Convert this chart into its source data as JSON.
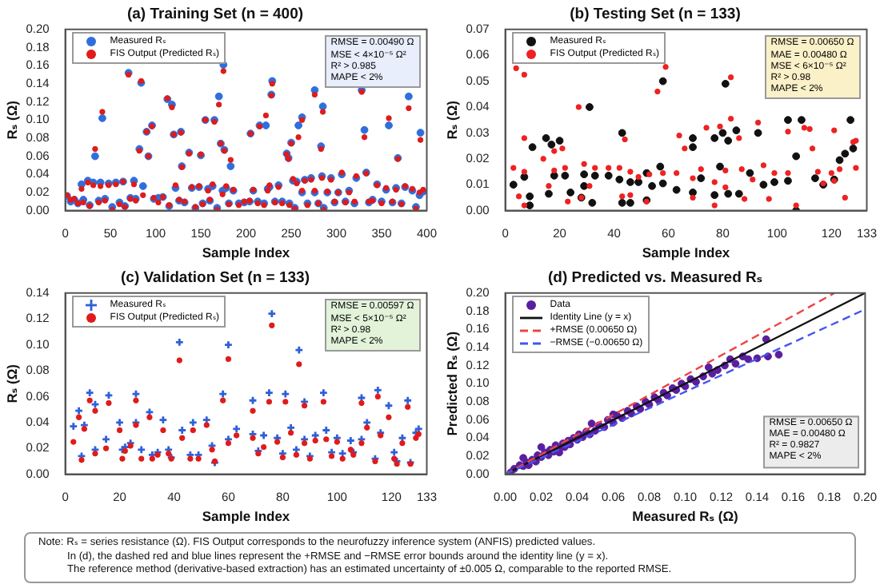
{
  "chart_data": [
    {
      "type": "scatter",
      "title": "(a) Training Set (n = 400)",
      "xlabel": "Sample Index",
      "ylabel": "Rₛ (Ω)",
      "legend": "top left",
      "xlim": [
        0,
        400
      ],
      "xticks": [
        0,
        50,
        100,
        150,
        200,
        250,
        300,
        350,
        400
      ],
      "ylim": [
        0,
        0.2
      ],
      "yticks": [
        {
          "value": 0,
          "label": "0.00"
        },
        {
          "value": 0.02,
          "label": "0.02"
        },
        {
          "value": 0.04,
          "label": "0.04"
        },
        {
          "value": 0.06,
          "label": "0.06"
        },
        {
          "value": 0.08,
          "label": "0.08"
        },
        {
          "value": 0.1,
          "label": "0.10"
        },
        {
          "value": 0.12,
          "label": "0.12"
        },
        {
          "value": 0.14,
          "label": "0.14"
        },
        {
          "value": 0.16,
          "label": "0.16"
        },
        {
          "value": 0.18,
          "label": "0.18"
        },
        {
          "value": 0.2,
          "label": "0.20"
        }
      ],
      "annotations": [
        "RMSE = 0.00490 Ω",
        "MSE < 4×10⁻⁵ Ω²",
        "R² > 0.985",
        "MAPE < 2%"
      ],
      "x": [
        2,
        6,
        10,
        14,
        18,
        20,
        25,
        27,
        31,
        37,
        39,
        44,
        48,
        52,
        56,
        60,
        64,
        66,
        72,
        76,
        78,
        86,
        98,
        103,
        108,
        115,
        122,
        126,
        132,
        140,
        144,
        148,
        152,
        158,
        160,
        163,
        168,
        174,
        178,
        181,
        186,
        192,
        198,
        204,
        208,
        213,
        220,
        224,
        226,
        232,
        236,
        240,
        248,
        252,
        254,
        256,
        262,
        265,
        268,
        272,
        276,
        280,
        284,
        286,
        290,
        294,
        298,
        302,
        306,
        310,
        314,
        320,
        336,
        340,
        345,
        350,
        355,
        362,
        366,
        372,
        376,
        384,
        388,
        392,
        396,
        33,
        41,
        70,
        82,
        84,
        90,
        92,
        96,
        113,
        118,
        120,
        128,
        129,
        137,
        150,
        155,
        165,
        170,
        172,
        175,
        176,
        183,
        205,
        215,
        222,
        228,
        229,
        245,
        247,
        250,
        258,
        262,
        276,
        285,
        283,
        322,
        328,
        331,
        333,
        358,
        368,
        380,
        393
      ],
      "series": [
        {
          "name": "Measured Rₛ",
          "color": "#2f6fdc",
          "marker": "circle",
          "values": [
            0.016,
            0.01,
            0.012,
            0.008,
            0.029,
            0.012,
            0.033,
            0.006,
            0.031,
            0.011,
            0.031,
            0.013,
            0.03,
            0.004,
            0.031,
            0.009,
            0.032,
            0.005,
            0.014,
            0.033,
            0.013,
            0.027,
            0.013,
            0.014,
            0.015,
            0.005,
            0.025,
            0.011,
            0.009,
            0.025,
            0.003,
            0.026,
            0.008,
            0.024,
            0.011,
            0.027,
            0.003,
            0.022,
            0.025,
            0.008,
            0.022,
            0.008,
            0.009,
            0.01,
            0.022,
            0.01,
            0.008,
            0.024,
            0.026,
            0.01,
            0.028,
            0.01,
            0.008,
            0.033,
            0.003,
            0.032,
            0.02,
            0.034,
            0.008,
            0.036,
            0.02,
            0.008,
            0.038,
            0.003,
            0.02,
            0.036,
            0.009,
            0.02,
            0.04,
            0.01,
            0.022,
            0.008,
            0.009,
            0.012,
            0.029,
            0.01,
            0.023,
            0.009,
            0.025,
            0.008,
            0.026,
            0.022,
            0.004,
            0.017,
            0.021,
            0.06,
            0.102,
            0.152,
            0.068,
            0.141,
            0.087,
            0.06,
            0.094,
            0.123,
            0.117,
            0.084,
            0.087,
            0.049,
            0.064,
            0.061,
            0.1,
            0.1,
            0.126,
            0.074,
            0.161,
            0.067,
            0.049,
            0.085,
            0.094,
            0.094,
            0.128,
            0.143,
            0.063,
            0.058,
            0.075,
            0.094,
            0.103,
            0.133,
            0.115,
            0.071,
            0.036,
            0.133,
            0.089,
            0.042,
            0.094,
            0.058,
            0.126,
            0.086
          ]
        },
        {
          "name": "FIS Output (Predicted Rₛ)",
          "color": "#e01b1b",
          "marker": "circle",
          "values": [
            0.017,
            0.012,
            0.013,
            0.008,
            0.024,
            0.009,
            0.031,
            0.005,
            0.028,
            0.009,
            0.027,
            0.011,
            0.028,
            0.001,
            0.029,
            0.007,
            0.032,
            0.004,
            0.013,
            0.029,
            0.011,
            0.017,
            0.014,
            0.009,
            0.015,
            0.006,
            0.028,
            0.012,
            0.01,
            0.026,
            0.004,
            0.027,
            0.007,
            0.022,
            0.012,
            0.029,
            0.001,
            0.018,
            0.027,
            0.007,
            0.023,
            0.006,
            0.01,
            0.011,
            0.023,
            0.008,
            0.006,
            0.022,
            0.028,
            0.009,
            0.026,
            0.008,
            0.006,
            0.035,
            0.002,
            0.03,
            0.022,
            0.033,
            0.006,
            0.034,
            0.022,
            0.008,
            0.036,
            0.001,
            0.021,
            0.034,
            0.01,
            0.02,
            0.042,
            0.009,
            0.02,
            0.01,
            0.01,
            0.011,
            0.028,
            0.008,
            0.025,
            0.01,
            0.023,
            0.007,
            0.027,
            0.024,
            0.002,
            0.02,
            0.023,
            0.068,
            0.109,
            0.15,
            0.066,
            0.143,
            0.087,
            0.06,
            0.093,
            0.124,
            0.114,
            0.084,
            0.086,
            0.048,
            0.063,
            0.062,
            0.1,
            0.098,
            0.117,
            0.074,
            0.154,
            0.066,
            0.056,
            0.085,
            0.093,
            0.105,
            0.127,
            0.14,
            0.062,
            0.057,
            0.074,
            0.081,
            0.1,
            0.128,
            0.109,
            0.068,
            0.038,
            0.131,
            0.081,
            0.041,
            0.102,
            0.057,
            0.113,
            0.078
          ]
        }
      ]
    },
    {
      "type": "scatter",
      "title": "(b) Testing Set (n = 133)",
      "xlabel": "Sample Index",
      "ylabel": "Rₛ (Ω)",
      "legend": "top left",
      "xlim": [
        0,
        133
      ],
      "xticks": [
        0,
        20,
        40,
        60,
        80,
        100,
        120,
        133
      ],
      "ylim": [
        0,
        0.07
      ],
      "yticks": [
        {
          "value": 0,
          "label": "0.00"
        },
        {
          "value": 0.01,
          "label": "0.01"
        },
        {
          "value": 0.02,
          "label": "0.02"
        },
        {
          "value": 0.03,
          "label": "0.03"
        },
        {
          "value": 0.04,
          "label": "0.04"
        },
        {
          "value": 0.05,
          "label": "0.05"
        },
        {
          "value": 0.06,
          "label": "0.06"
        },
        {
          "value": 0.07,
          "label": "0.07"
        }
      ],
      "annotations": [
        "RMSE = 0.00650 Ω",
        "MAE = 0.00480 Ω",
        "MSE < 6×10⁻⁵ Ω²",
        "R² > 0.98",
        "MAPE < 2%"
      ],
      "series": [
        {
          "name": "Measured Rₛ",
          "color": "#111111",
          "marker": "circle",
          "x": [
            3,
            7,
            9,
            9,
            10,
            15,
            16,
            17,
            18,
            20,
            22,
            24,
            28,
            29,
            29,
            31,
            32,
            33,
            38,
            42,
            43,
            43,
            46,
            46,
            49,
            52,
            52,
            54,
            57,
            58,
            58,
            63,
            69,
            69,
            69,
            72,
            77,
            77,
            79,
            80,
            81,
            82,
            82,
            85,
            86,
            90,
            93,
            95,
            99,
            104,
            104,
            107,
            107,
            109,
            114,
            117,
            121,
            123,
            125,
            127,
            128
          ],
          "values": [
            0.01,
            0.013,
            0.0055,
            0.002,
            0.0245,
            0.028,
            0.0065,
            0.0255,
            0.0135,
            0.027,
            0.0135,
            0.007,
            0.005,
            0.014,
            0.0095,
            0.04,
            0.003,
            0.0135,
            0.0135,
            0.012,
            0.03,
            0.003,
            0.011,
            0.003,
            0.011,
            0.0145,
            0.004,
            0.0095,
            0.017,
            0.05,
            0.0105,
            0.008,
            0.028,
            0.0245,
            0.007,
            0.0125,
            0.028,
            0.006,
            0.017,
            0.03,
            0.049,
            0.0065,
            0.027,
            0.031,
            0.0065,
            0.0145,
            0.03,
            0.01,
            0.011,
            0.035,
            0.0115,
            0.021,
            0.0,
            0.035,
            0.0125,
            0.01,
            0.012,
            0.0195,
            0.022,
            0.035,
            0.024
          ]
        },
        {
          "name": "FIS Output (Predicted Rₛ)",
          "color": "#ee2222",
          "marker": "circle",
          "x": [
            3,
            4,
            5,
            7,
            7,
            7,
            7,
            14,
            16,
            18,
            18,
            21,
            22,
            23,
            27,
            28,
            29,
            31,
            33,
            38,
            42,
            43,
            44,
            46,
            46,
            49,
            52,
            53,
            56,
            58,
            59,
            63,
            64,
            66,
            69,
            69,
            72,
            74,
            77,
            77,
            79,
            81,
            81,
            83,
            83,
            86,
            87,
            88,
            91,
            93,
            95,
            97,
            99,
            104,
            104,
            107,
            110,
            112,
            113,
            115,
            117,
            120,
            121,
            121,
            123,
            125,
            128,
            129,
            129
          ],
          "values": [
            0.0165,
            0.055,
            0.0055,
            0.0525,
            0.028,
            0.015,
            0.002,
            0.02,
            0.0095,
            0.0155,
            0.023,
            0.024,
            0.0165,
            0.0035,
            0.04,
            0.005,
            0.018,
            0.0095,
            0.0165,
            0.0165,
            0.0165,
            0.0055,
            0.0275,
            0.015,
            0.006,
            0.013,
            0.0035,
            0.014,
            0.046,
            0.0145,
            0.0555,
            0.0145,
            0.029,
            0.024,
            0.0125,
            0.005,
            0.016,
            0.032,
            0.011,
            0.002,
            0.0325,
            0.0155,
            0.009,
            0.0515,
            0.0355,
            0.028,
            0.016,
            0.0045,
            0.012,
            0.034,
            0.0175,
            0.0045,
            0.0145,
            0.0145,
            0.0305,
            0.002,
            0.032,
            0.0315,
            0.024,
            0.015,
            0.0105,
            0.0145,
            0.031,
            0.0115,
            0.016,
            0.005,
            0.0265,
            0.027,
            0.0165
          ]
        }
      ]
    },
    {
      "type": "scatter",
      "title": "(c) Validation Set (n = 133)",
      "xlabel": "Sample Index",
      "ylabel": "Rₛ (Ω)",
      "legend": "top left",
      "xlim": [
        0,
        133
      ],
      "xticks": [
        0,
        20,
        40,
        60,
        80,
        100,
        120,
        133
      ],
      "ylim": [
        0,
        0.14
      ],
      "yticks": [
        {
          "value": 0,
          "label": "0.00"
        },
        {
          "value": 0.02,
          "label": "0.02"
        },
        {
          "value": 0.04,
          "label": "0.04"
        },
        {
          "value": 0.06,
          "label": "0.06"
        },
        {
          "value": 0.08,
          "label": "0.08"
        },
        {
          "value": 0.1,
          "label": "0.10"
        },
        {
          "value": 0.12,
          "label": "0.12"
        },
        {
          "value": 0.14,
          "label": "0.14"
        }
      ],
      "annotations": [
        "RMSE = 0.00597 Ω",
        "MSE < 5×10⁻⁵ Ω²",
        "R² > 0.98",
        "MAPE < 2%"
      ],
      "x": [
        3,
        5,
        6,
        7,
        9,
        11,
        11,
        15,
        16,
        20,
        21,
        22,
        24,
        26,
        26,
        28,
        31,
        32,
        34,
        36,
        38,
        39,
        42,
        43,
        46,
        47,
        49,
        52,
        54,
        55,
        58,
        60,
        60,
        63,
        69,
        69,
        71,
        73,
        75,
        76,
        78,
        80,
        81,
        83,
        85,
        86,
        88,
        88,
        90,
        92,
        95,
        96,
        98,
        100,
        102,
        105,
        106,
        109,
        109,
        111,
        114,
        115,
        116,
        119,
        121,
        122,
        124,
        126,
        127,
        129,
        130
      ],
      "series": [
        {
          "name": "Measured Rₛ",
          "color": "#2f5fd8",
          "marker": "cross",
          "values": [
            0.037,
            0.049,
            0.014,
            0.038,
            0.063,
            0.054,
            0.019,
            0.027,
            0.061,
            0.04,
            0.019,
            0.021,
            0.024,
            0.04,
            0.062,
            0.019,
            0.048,
            0.015,
            0.017,
            0.042,
            0.019,
            0.013,
            0.102,
            0.034,
            0.015,
            0.04,
            0.015,
            0.042,
            0.022,
            0.009,
            0.062,
            0.1,
            0.027,
            0.035,
            0.057,
            0.031,
            0.018,
            0.03,
            0.063,
            0.124,
            0.028,
            0.016,
            0.062,
            0.036,
            0.019,
            0.096,
            0.056,
            0.027,
            0.014,
            0.03,
            0.063,
            0.034,
            0.017,
            0.028,
            0.016,
            0.026,
            0.017,
            0.059,
            0.027,
            0.04,
            0.012,
            0.065,
            0.032,
            0.053,
            0.017,
            0.01,
            0.028,
            0.057,
            0.009,
            0.032,
            0.035
          ]
        },
        {
          "name": "FIS Output (Predicted Rₛ)",
          "color": "#e01b1b",
          "marker": "circle",
          "values": [
            0.025,
            0.044,
            0.011,
            0.035,
            0.057,
            0.049,
            0.016,
            0.02,
            0.055,
            0.034,
            0.012,
            0.018,
            0.022,
            0.038,
            0.057,
            0.012,
            0.044,
            0.012,
            0.015,
            0.034,
            0.016,
            0.012,
            0.088,
            0.028,
            0.012,
            0.034,
            0.012,
            0.038,
            0.019,
            0.01,
            0.057,
            0.089,
            0.024,
            0.03,
            0.049,
            0.028,
            0.016,
            0.021,
            0.056,
            0.115,
            0.025,
            0.013,
            0.056,
            0.032,
            0.015,
            0.085,
            0.053,
            0.024,
            0.012,
            0.026,
            0.056,
            0.027,
            0.014,
            0.025,
            0.012,
            0.019,
            0.015,
            0.055,
            0.024,
            0.036,
            0.01,
            0.06,
            0.03,
            0.044,
            0.012,
            0.008,
            0.024,
            0.052,
            0.008,
            0.028,
            0.031
          ]
        }
      ]
    },
    {
      "type": "scatter",
      "title": "(d) Predicted vs. Measured Rₛ",
      "xlabel": "Measured Rₛ (Ω)",
      "ylabel": "Predicted Rₛ (Ω)",
      "legend": "top left",
      "xlim": [
        0,
        0.2
      ],
      "xticks": [
        {
          "value": 0,
          "label": "0.00"
        },
        {
          "value": 0.02,
          "label": "0.02"
        },
        {
          "value": 0.04,
          "label": "0.04"
        },
        {
          "value": 0.06,
          "label": "0.06"
        },
        {
          "value": 0.08,
          "label": "0.08"
        },
        {
          "value": 0.1,
          "label": "0.10"
        },
        {
          "value": 0.12,
          "label": "0.12"
        },
        {
          "value": 0.14,
          "label": "0.14"
        },
        {
          "value": 0.16,
          "label": "0.16"
        },
        {
          "value": 0.18,
          "label": "0.18"
        },
        {
          "value": 0.2,
          "label": "0.20"
        }
      ],
      "ylim": [
        0,
        0.2
      ],
      "yticks": [
        {
          "value": 0,
          "label": "0.00"
        },
        {
          "value": 0.02,
          "label": "0.02"
        },
        {
          "value": 0.04,
          "label": "0.04"
        },
        {
          "value": 0.06,
          "label": "0.06"
        },
        {
          "value": 0.08,
          "label": "0.08"
        },
        {
          "value": 0.1,
          "label": "0.10"
        },
        {
          "value": 0.12,
          "label": "0.12"
        },
        {
          "value": 0.14,
          "label": "0.14"
        },
        {
          "value": 0.16,
          "label": "0.16"
        },
        {
          "value": 0.18,
          "label": "0.18"
        },
        {
          "value": 0.2,
          "label": "0.20"
        }
      ],
      "annotations": [
        "RMSE = 0.00650 Ω",
        "MAE = 0.00480 Ω",
        "R² = 0.9827",
        "MAPE < 2%"
      ],
      "series": [
        {
          "name": "Data",
          "color": "#5a1fa0",
          "marker": "circle",
          "x": [
            0.003,
            0.005,
            0.008,
            0.01,
            0.012,
            0.013,
            0.015,
            0.017,
            0.018,
            0.02,
            0.022,
            0.024,
            0.025,
            0.027,
            0.028,
            0.03,
            0.032,
            0.033,
            0.035,
            0.036,
            0.038,
            0.04,
            0.041,
            0.043,
            0.045,
            0.047,
            0.048,
            0.05,
            0.052,
            0.055,
            0.057,
            0.06,
            0.062,
            0.065,
            0.068,
            0.07,
            0.073,
            0.075,
            0.078,
            0.08,
            0.083,
            0.085,
            0.088,
            0.09,
            0.093,
            0.095,
            0.098,
            0.1,
            0.103,
            0.106,
            0.11,
            0.113,
            0.115,
            0.118,
            0.122,
            0.125,
            0.128,
            0.132,
            0.135,
            0.14,
            0.145,
            0.146,
            0.152,
            0.02,
            0.03,
            0.01,
            0.06
          ],
          "values": [
            0.002,
            0.006,
            0.01,
            0.009,
            0.013,
            0.01,
            0.016,
            0.014,
            0.021,
            0.019,
            0.024,
            0.021,
            0.027,
            0.025,
            0.032,
            0.028,
            0.034,
            0.03,
            0.037,
            0.033,
            0.04,
            0.038,
            0.044,
            0.041,
            0.047,
            0.044,
            0.056,
            0.048,
            0.054,
            0.052,
            0.06,
            0.057,
            0.065,
            0.062,
            0.07,
            0.067,
            0.075,
            0.072,
            0.08,
            0.077,
            0.085,
            0.082,
            0.09,
            0.087,
            0.095,
            0.093,
            0.1,
            0.097,
            0.105,
            0.102,
            0.108,
            0.118,
            0.111,
            0.115,
            0.12,
            0.127,
            0.122,
            0.13,
            0.127,
            0.128,
            0.149,
            0.13,
            0.132,
            0.03,
            0.024,
            0.018,
            0.066
          ]
        },
        {
          "name": "Identity Line (y = x)",
          "type": "line",
          "color": "#111111",
          "marker": "none",
          "line_style": "solid",
          "x": [
            0,
            0.2
          ],
          "values": [
            0,
            0.2
          ]
        },
        {
          "name": "+RMSE (0.00650 Ω)",
          "type": "line",
          "color": "#ee4444",
          "marker": "none",
          "line_style": "dashed",
          "x": [
            0,
            0.183
          ],
          "values": [
            0,
            0.2
          ]
        },
        {
          "name": "−RMSE (−0.00650 Ω)",
          "type": "line",
          "color": "#4455ee",
          "marker": "none",
          "line_style": "dashed",
          "x": [
            0,
            0.2
          ],
          "values": [
            0,
            0.182
          ]
        }
      ]
    },
    {
      "type": "other",
      "annotations": [
        "Note: Rₛ = series resistance (Ω). FIS Output corresponds to the neurofuzzy inference system (ANFIS) predicted values.",
        "In (d), the dashed red and blue lines represent the +RMSE and −RMSE error bounds around the identity line (y = x).",
        "The reference method (derivative-based extraction) has an estimated uncertainty of ±0.005 Ω, comparable to the reported RMSE."
      ]
    }
  ]
}
